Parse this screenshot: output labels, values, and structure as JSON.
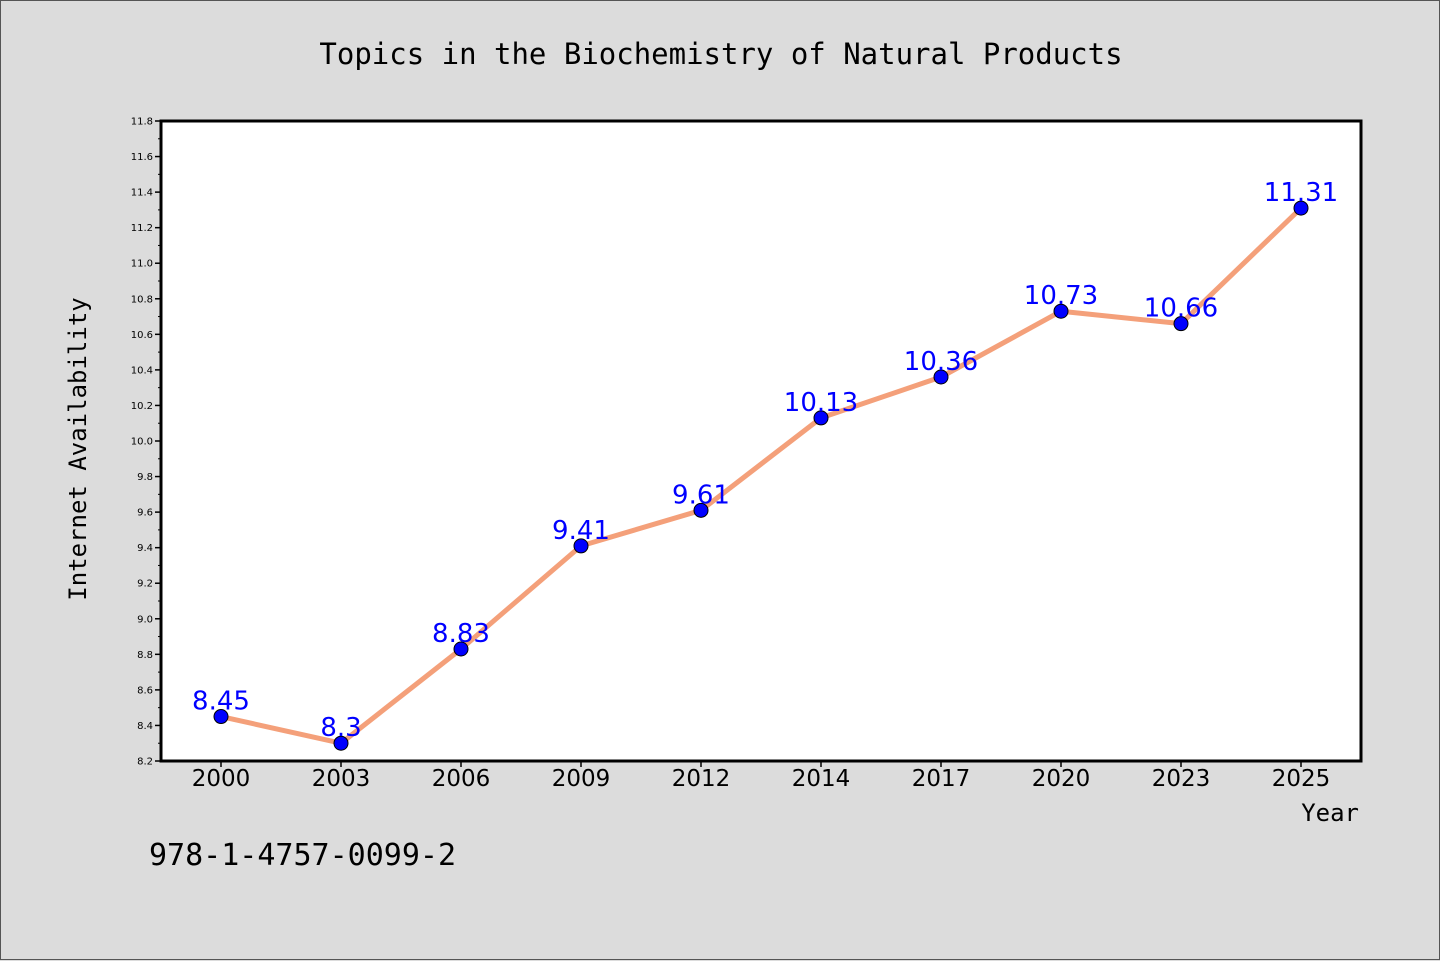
{
  "isbn": "978-1-4757-0099-2",
  "colors": {
    "background": "#dcdcdc",
    "plot_background": "#ffffff",
    "line": "#f4a07a",
    "marker": "#0000ff",
    "data_label": "#0000ff",
    "text": "#000000"
  },
  "chart_data": {
    "type": "line",
    "title": "Topics in the Biochemistry of Natural Products",
    "xlabel": "Year",
    "ylabel": "Internet Availability",
    "categories": [
      "2000",
      "2003",
      "2006",
      "2009",
      "2012",
      "2014",
      "2017",
      "2020",
      "2023",
      "2025"
    ],
    "series": [
      {
        "values": [
          8.45,
          8.3,
          8.83,
          9.41,
          9.61,
          10.13,
          10.36,
          10.73,
          10.66,
          11.31
        ],
        "labels": [
          "8.45",
          "8.3",
          "8.83",
          "9.41",
          "9.61",
          "10.13",
          "10.36",
          "10.73",
          "10.66",
          "11.31"
        ]
      }
    ],
    "ylim": [
      8.2,
      11.8
    ],
    "yticks": [
      "8.2",
      "8.4",
      "8.6",
      "8.8",
      "9.0",
      "9.2",
      "9.4",
      "9.6",
      "9.8",
      "10.0",
      "10.2",
      "10.4",
      "10.6",
      "10.8",
      "11.0",
      "11.2",
      "11.4",
      "11.6",
      "11.8"
    ],
    "grid": false,
    "legend": "none"
  }
}
